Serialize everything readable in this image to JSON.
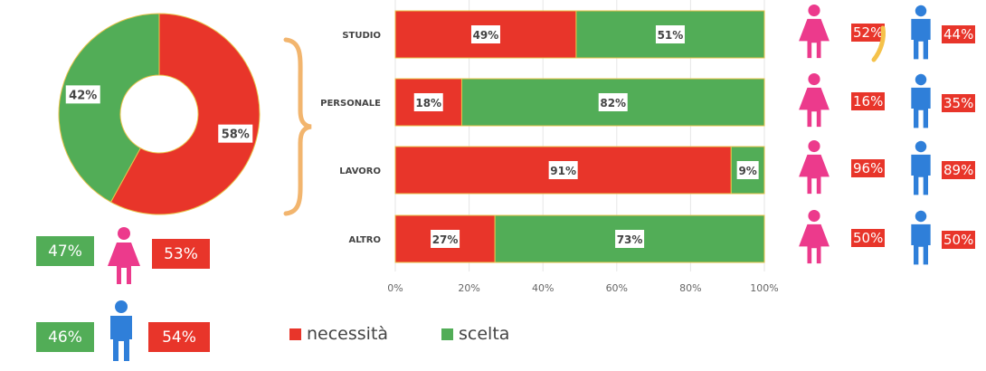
{
  "colors": {
    "necessita": "#e8352a",
    "scelta": "#52ad57",
    "female": "#ec3a8c",
    "male": "#2f7fd9",
    "brace": "#f2b56e"
  },
  "chart_data": [
    {
      "type": "pie",
      "variant": "donut",
      "slices": [
        {
          "name": "necessità",
          "value": 58,
          "label": "58%"
        },
        {
          "name": "scelta",
          "value": 42,
          "label": "42%"
        }
      ]
    },
    {
      "type": "bar",
      "orientation": "horizontal",
      "stacked": true,
      "categories": [
        "STUDIO",
        "PERSONALE",
        "LAVORO",
        "ALTRO"
      ],
      "series": [
        {
          "name": "necessità",
          "values": [
            49,
            18,
            91,
            27
          ],
          "labels": [
            "49%",
            "18%",
            "91%",
            "27%"
          ]
        },
        {
          "name": "scelta",
          "values": [
            51,
            82,
            9,
            73
          ],
          "labels": [
            "51%",
            "82%",
            "9%",
            "73%"
          ]
        }
      ],
      "xlim": [
        0,
        100
      ],
      "xticks": [
        "0%",
        "20%",
        "40%",
        "60%",
        "80%",
        "100%"
      ],
      "grid": true,
      "legend": {
        "position": "bottom",
        "items": [
          "necessità",
          "scelta"
        ]
      }
    }
  ],
  "gender_summary": {
    "female": {
      "scelta": "47%",
      "necessita": "53%"
    },
    "male": {
      "scelta": "46%",
      "necessita": "54%"
    }
  },
  "gender_by_category": [
    {
      "category": "STUDIO",
      "female": "52%",
      "male": "44%"
    },
    {
      "category": "PERSONALE",
      "female": "16%",
      "male": "35%"
    },
    {
      "category": "LAVORO",
      "female": "96%",
      "male": "89%"
    },
    {
      "category": "ALTRO",
      "female": "50%",
      "male": "50%"
    }
  ]
}
